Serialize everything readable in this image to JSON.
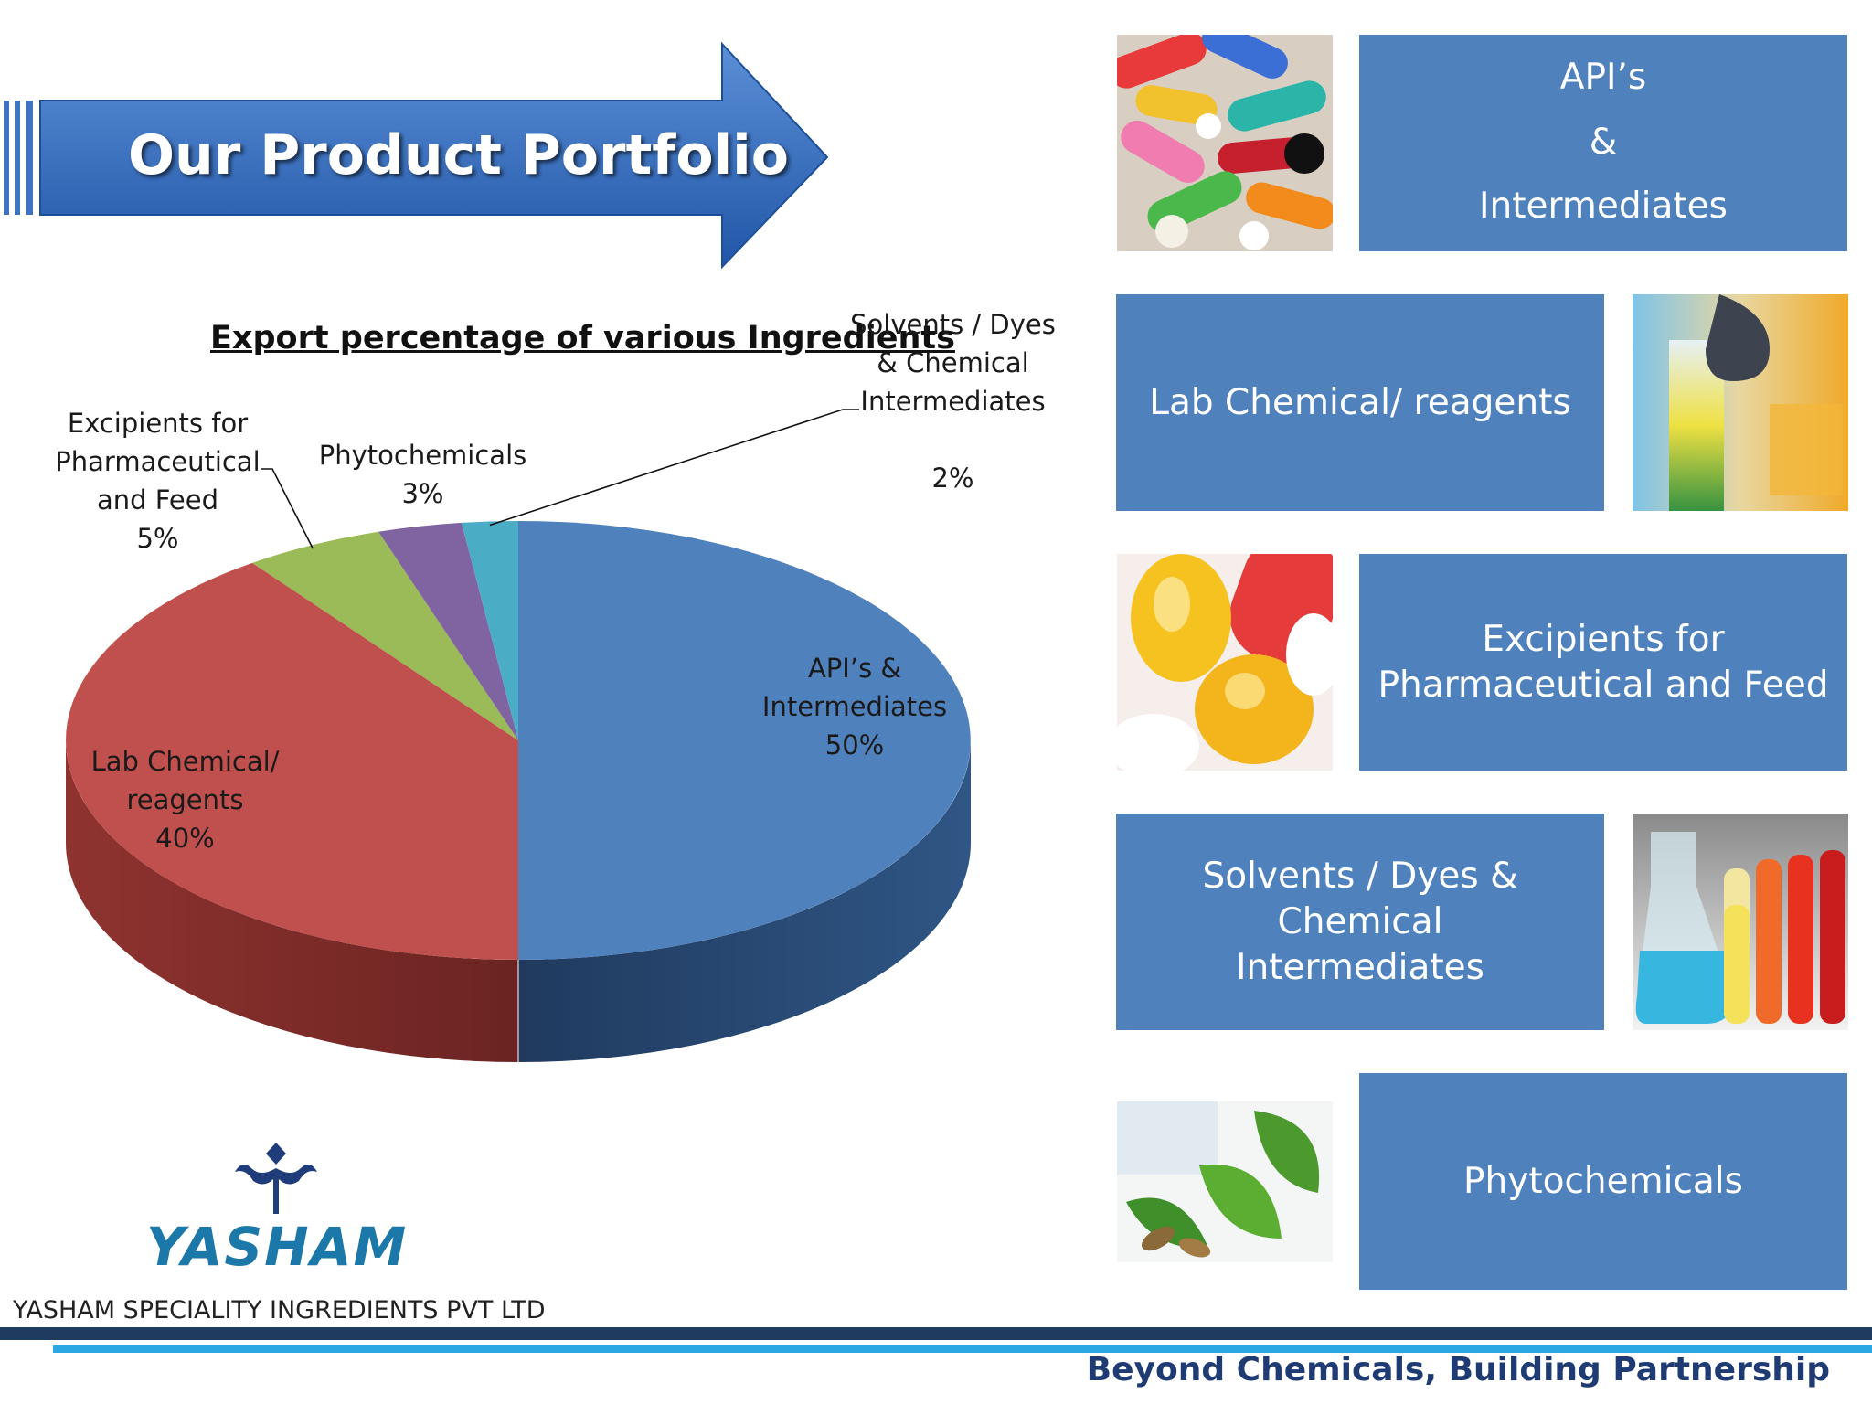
{
  "slide": {
    "title": "Our Product Portfolio",
    "company_name": "YASHAM SPECIALITY INGREDIENTS PVT LTD",
    "logo_text": "YASHAM",
    "tagline": "Beyond Chemicals, Building Partnership"
  },
  "chart_data": {
    "type": "pie",
    "title": "Export percentage of various Ingredients",
    "style": "3d",
    "slices": [
      {
        "label": "API’s & Intermediates",
        "value": 50,
        "value_label": "50%",
        "color": "#4f81bd"
      },
      {
        "label": "Lab Chemical/ reagents",
        "value": 40,
        "value_label": "40%",
        "color": "#c0504d"
      },
      {
        "label": "Excipients  for Pharmaceutical and Feed",
        "value": 5,
        "value_label": "5%",
        "color": "#9bbb59"
      },
      {
        "label": "Phytochemicals",
        "value": 3,
        "value_label": "3%",
        "color": "#8064a2"
      },
      {
        "label": "Solvents / Dyes & Chemical Intermediates",
        "value": 2,
        "value_label": "2%",
        "color": "#4bacc6"
      }
    ]
  },
  "labels": {
    "api": {
      "line1": "API’s &",
      "line2": "Intermediates",
      "pct": "50%"
    },
    "lab": {
      "line1": "Lab Chemical/",
      "line2": "reagents",
      "pct": "40%"
    },
    "excip": {
      "line1": "Excipients  for",
      "line2": "Pharmaceutical",
      "line3": "and Feed",
      "pct": "5%"
    },
    "phyto": {
      "line1": "Phytochemicals",
      "pct": "3%"
    },
    "solv": {
      "line1": "Solvents / Dyes",
      "line2": "& Chemical",
      "line3": "Intermediates",
      "pct": "2%"
    }
  },
  "tiles": [
    {
      "lines": [
        "API’s",
        "&",
        "Intermediates"
      ]
    },
    {
      "lines": [
        "Lab Chemical/ reagents"
      ]
    },
    {
      "lines": [
        "Excipients  for",
        "Pharmaceutical and Feed"
      ]
    },
    {
      "lines": [
        "Solvents / Dyes & Chemical",
        "Intermediates"
      ]
    },
    {
      "lines": [
        "Phytochemicals"
      ]
    }
  ],
  "photos": [
    "capsules-photo",
    "test-tube-photo",
    "softgel-photo",
    "flask-photo",
    "leaves-photo"
  ]
}
